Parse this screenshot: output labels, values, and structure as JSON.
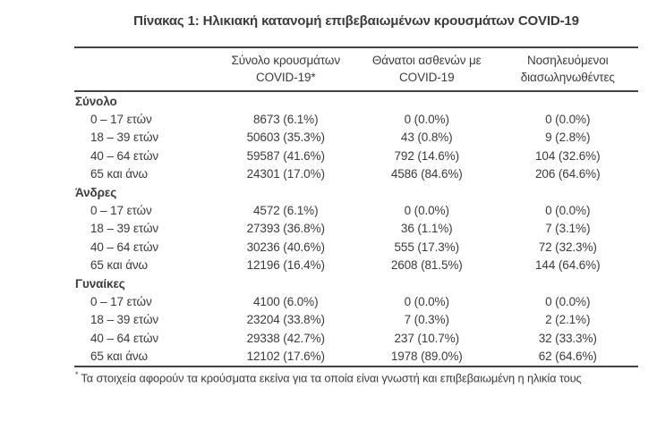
{
  "title": "Πίνακας 1: Ηλικιακή κατανομή επιβεβαιωμένων κρουσμάτων COVID-19",
  "colors": {
    "text": "#3b3b3d",
    "rule": "#434346",
    "background": "#ffffff"
  },
  "table": {
    "columns": [
      {
        "line1": "",
        "line2": ""
      },
      {
        "line1": "Σύνολο κρουσμάτων",
        "line2": "COVID-19*"
      },
      {
        "line1": "Θάνατοι ασθενών με",
        "line2": "COVID-19"
      },
      {
        "line1": "Νοσηλευόμενοι",
        "line2": "διασωληνωθέντες"
      }
    ],
    "sections": [
      {
        "header": "Σύνολο",
        "rows": [
          {
            "age": "0 – 17 ετών",
            "cases": "8673 (6.1%)",
            "deaths": "0 (0.0%)",
            "intubated": "0 (0.0%)"
          },
          {
            "age": "18 – 39 ετών",
            "cases": "50603 (35.3%)",
            "deaths": "43 (0.8%)",
            "intubated": "9 (2.8%)"
          },
          {
            "age": "40 – 64 ετών",
            "cases": "59587 (41.6%)",
            "deaths": "792 (14.6%)",
            "intubated": "104 (32.6%)"
          },
          {
            "age": "65 και άνω",
            "cases": "24301 (17.0%)",
            "deaths": "4586 (84.6%)",
            "intubated": "206 (64.6%)"
          }
        ]
      },
      {
        "header": "Άνδρες",
        "rows": [
          {
            "age": "0 – 17 ετών",
            "cases": "4572 (6.1%)",
            "deaths": "0 (0.0%)",
            "intubated": "0 (0.0%)"
          },
          {
            "age": "18 – 39 ετών",
            "cases": "27393 (36.8%)",
            "deaths": "36 (1.1%)",
            "intubated": "7 (3.1%)"
          },
          {
            "age": "40 – 64 ετών",
            "cases": "30236 (40.6%)",
            "deaths": "555 (17.3%)",
            "intubated": "72 (32.3%)"
          },
          {
            "age": "65 και άνω",
            "cases": "12196 (16.4%)",
            "deaths": "2608 (81.5%)",
            "intubated": "144 (64.6%)"
          }
        ]
      },
      {
        "header": "Γυναίκες",
        "rows": [
          {
            "age": "0 – 17 ετών",
            "cases": "4100 (6.0%)",
            "deaths": "0 (0.0%)",
            "intubated": "0 (0.0%)"
          },
          {
            "age": "18 – 39 ετών",
            "cases": "23204 (33.8%)",
            "deaths": "7 (0.3%)",
            "intubated": "2 (2.1%)"
          },
          {
            "age": "40 – 64 ετών",
            "cases": "29338 (42.7%)",
            "deaths": "237 (10.7%)",
            "intubated": "32 (33.3%)"
          },
          {
            "age": "65 και άνω",
            "cases": "12102 (17.6%)",
            "deaths": "1978 (89.0%)",
            "intubated": "62 (64.6%)"
          }
        ]
      }
    ],
    "footnote": {
      "marker": "*",
      "text": "Τα στοιχεία αφορούν τα κρούσματα εκείνα για τα οποία είναι γνωστή και επιβεβαιωμένη η ηλικία τους"
    }
  }
}
